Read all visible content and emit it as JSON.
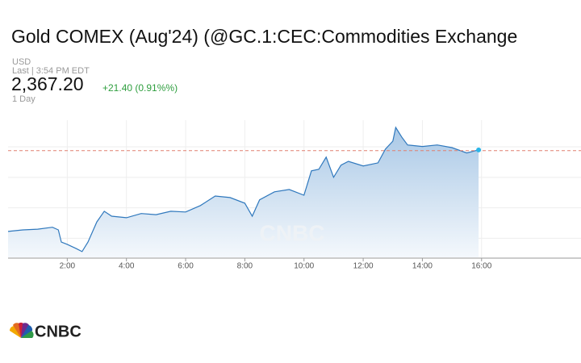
{
  "title": "Gold COMEX (Aug'24) (@GC.1:CEC:Commodities Exchange",
  "currency": "USD",
  "last_time": "Last | 3:54 PM EDT",
  "price": "2,367.20",
  "change": "+21.40 (0.91%%)",
  "range": "1 Day",
  "logo": "CNBC",
  "chart_data": {
    "type": "area",
    "color": "#2f78bd",
    "reference_value": 2367,
    "x": [
      0,
      0.5,
      1,
      1.5,
      1.7,
      1.8,
      2,
      2.3,
      2.5,
      2.7,
      3,
      3.25,
      3.5,
      4,
      4.5,
      5,
      5.5,
      6,
      6.5,
      7,
      7.5,
      8,
      8.25,
      8.5,
      9,
      9.5,
      10,
      10.25,
      10.5,
      10.75,
      11,
      11.25,
      11.5,
      12,
      12.5,
      12.75,
      13,
      13.1,
      13.3,
      13.5,
      14,
      14.5,
      15,
      15.5,
      15.9
    ],
    "values": [
      2345.8,
      2346.2,
      2346.4,
      2346.9,
      2346.2,
      2343.0,
      2342.4,
      2341.3,
      2340.5,
      2343.0,
      2348.3,
      2351.1,
      2349.8,
      2349.4,
      2350.5,
      2350.2,
      2351.1,
      2350.9,
      2352.6,
      2355.1,
      2354.7,
      2353.2,
      2349.8,
      2354.1,
      2356.2,
      2356.8,
      2355.3,
      2361.7,
      2362.1,
      2365.3,
      2360.0,
      2363.2,
      2364.2,
      2363.0,
      2363.8,
      2367.4,
      2369.5,
      2373.1,
      2370.6,
      2368.5,
      2368.1,
      2368.5,
      2367.8,
      2366.4,
      2367.2
    ],
    "xlim": [
      0,
      19.36
    ],
    "xticks": [
      {
        "value": 2,
        "label": "2:00"
      },
      {
        "value": 4,
        "label": "4:00"
      },
      {
        "value": 6,
        "label": "6:00"
      },
      {
        "value": 8,
        "label": "8:00"
      },
      {
        "value": 10,
        "label": "10:00"
      },
      {
        "value": 12,
        "label": "12:00"
      },
      {
        "value": 14,
        "label": "14:00"
      },
      {
        "value": 16,
        "label": "16:00"
      }
    ],
    "ylim": [
      2339,
      2375
    ],
    "yticks": [
      2344,
      2352,
      2360,
      2368
    ],
    "grid": true
  }
}
